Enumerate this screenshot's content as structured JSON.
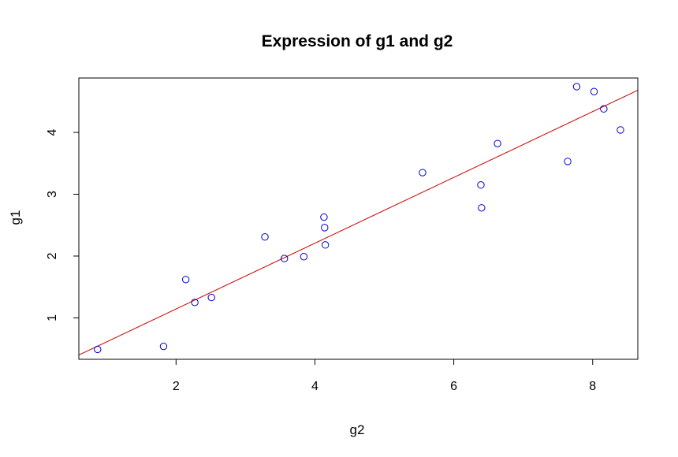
{
  "chart_data": {
    "type": "scatter",
    "title": "Expression of g1 and g2",
    "xlabel": "g2",
    "ylabel": "g1",
    "xlim": [
      0.6,
      8.65
    ],
    "ylim": [
      0.33,
      4.88
    ],
    "xticks": [
      2,
      4,
      6,
      8
    ],
    "yticks": [
      1,
      2,
      3,
      4
    ],
    "grid": false,
    "legend": "none",
    "point_color": "#0000cc",
    "line_color": "#cc0000",
    "points": [
      {
        "x": 0.87,
        "y": 0.49
      },
      {
        "x": 1.82,
        "y": 0.54
      },
      {
        "x": 2.14,
        "y": 1.62
      },
      {
        "x": 2.27,
        "y": 1.25
      },
      {
        "x": 2.51,
        "y": 1.33
      },
      {
        "x": 3.28,
        "y": 2.31
      },
      {
        "x": 3.56,
        "y": 1.96
      },
      {
        "x": 3.84,
        "y": 1.99
      },
      {
        "x": 4.13,
        "y": 2.63
      },
      {
        "x": 4.14,
        "y": 2.46
      },
      {
        "x": 4.15,
        "y": 2.18
      },
      {
        "x": 5.55,
        "y": 3.35
      },
      {
        "x": 6.39,
        "y": 3.15
      },
      {
        "x": 6.4,
        "y": 2.78
      },
      {
        "x": 6.63,
        "y": 3.82
      },
      {
        "x": 7.64,
        "y": 3.53
      },
      {
        "x": 7.77,
        "y": 4.74
      },
      {
        "x": 8.02,
        "y": 4.66
      },
      {
        "x": 8.16,
        "y": 4.38
      },
      {
        "x": 8.4,
        "y": 4.04
      }
    ],
    "regression_line": {
      "intercept": 0.08,
      "slope": 0.532
    }
  }
}
